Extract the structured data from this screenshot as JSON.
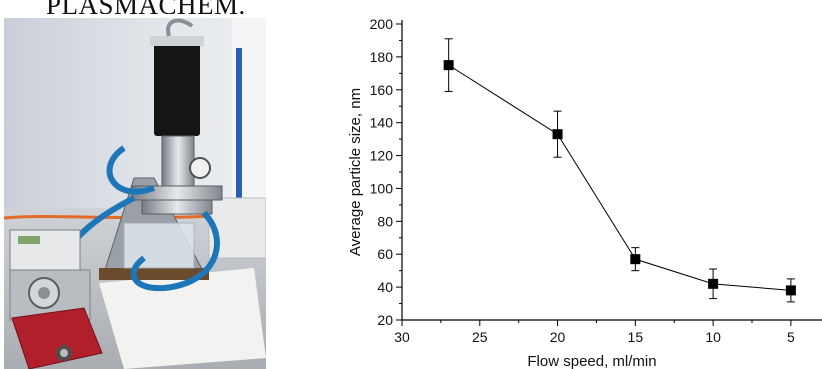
{
  "figure": {
    "heading_fragment": "PLASMACHEM."
  },
  "photo": {
    "description_icon": "lab-apparatus-photo"
  },
  "chart_data": {
    "type": "line",
    "title": "",
    "xlabel": "Flow speed, ml/min",
    "ylabel": "Average particle size, nm",
    "x_reversed": true,
    "xlim": [
      30,
      3
    ],
    "ylim": [
      20,
      200
    ],
    "x_ticks": [
      30,
      25,
      20,
      15,
      10,
      5
    ],
    "y_ticks": [
      20,
      40,
      60,
      80,
      100,
      120,
      140,
      160,
      180,
      200
    ],
    "grid": false,
    "legend": "none",
    "marker": "square",
    "series": [
      {
        "x": [
          27,
          20,
          15,
          10,
          5
        ],
        "y": [
          175,
          133,
          57,
          42,
          38
        ],
        "err": [
          16,
          14,
          7,
          9,
          7
        ]
      }
    ]
  }
}
